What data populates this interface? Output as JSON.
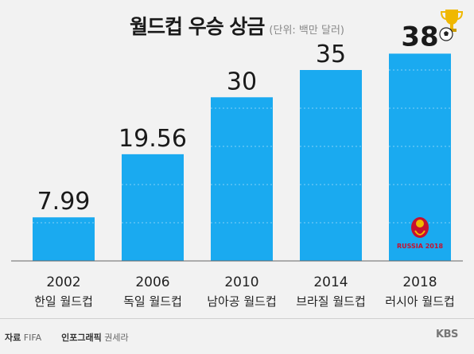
{
  "header": {
    "title": "월드컵 우승 상금",
    "unit": "(단위: 백만 달러)"
  },
  "chart_data": {
    "type": "bar",
    "title": "월드컵 우승 상금",
    "subtitle": "(단위: 백만 달러)",
    "categories": [
      "2002",
      "2006",
      "2010",
      "2014",
      "2018"
    ],
    "category_sublabels": [
      "한일 월드컵",
      "독일 월드컵",
      "남아공 월드컵",
      "브라질 월드컵",
      "러시아 월드컵"
    ],
    "values": [
      7.99,
      19.56,
      30,
      35,
      38
    ],
    "value_labels": [
      "7.99",
      "19.56",
      "30",
      "35",
      "38"
    ],
    "highlight_index": 4,
    "bar_color": "#1aaaf0",
    "ylim": [
      0,
      42
    ],
    "grid": false,
    "emblem_text": "RUSSIA 2018"
  },
  "footer": {
    "source_label": "자료",
    "source_value": "FIFA",
    "credit_label": "인포그래픽",
    "credit_value": "권세라",
    "brand": "KBS"
  },
  "colors": {
    "background": "#f2f2f2",
    "bar": "#1aaaf0",
    "baseline": "#666666",
    "trophy": "#f0b800"
  },
  "icons": [
    "trophy-icon",
    "soccer-ball-icon",
    "kbs-logo",
    "world-cup-emblem-icon"
  ]
}
